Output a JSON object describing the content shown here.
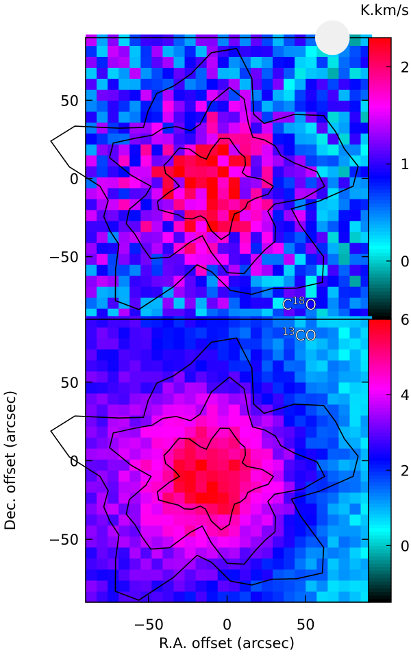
{
  "colorbar_unit": "K.km/s",
  "xlabel": "R.A. offset (arcsec)",
  "ylabel": "Dec. offset (arcsec)",
  "colors": {
    "cmap": [
      "#000000",
      "#00ffff",
      "#0000ff",
      "#ff00ff",
      "#ff0000"
    ],
    "contour": "#000000",
    "beam": "#f0f0f0"
  },
  "chart_data": [
    {
      "type": "heatmap",
      "name_label": {
        "pre": "C",
        "sup": "18",
        "post": "O"
      },
      "xlim": [
        -90,
        90
      ],
      "ylim": [
        -90,
        90
      ],
      "xticks": [],
      "yticks": [
        -50,
        0,
        50
      ],
      "ytick_labels": [
        "−50",
        "0",
        "50"
      ],
      "color_range": [
        -0.6,
        2.3
      ],
      "colorbar_ticks": [
        0,
        1,
        2
      ],
      "colorbar_tick_labels": [
        "0",
        "1",
        "2"
      ],
      "pixel_size": 7,
      "peak": {
        "x": -10,
        "y": -5,
        "value": 2.0
      },
      "contours": [
        0.5,
        1.0,
        1.5
      ]
    },
    {
      "type": "heatmap",
      "name_label": {
        "pre": "",
        "sup": "13",
        "post": "CO"
      },
      "xlim": [
        -90,
        90
      ],
      "ylim": [
        -90,
        90
      ],
      "xticks": [
        -50,
        0,
        50
      ],
      "xtick_labels": [
        "−50",
        "0",
        "50"
      ],
      "yticks": [
        -50,
        0,
        50
      ],
      "ytick_labels": [
        "−50",
        "0",
        "50"
      ],
      "color_range": [
        -1.5,
        6.0
      ],
      "colorbar_ticks": [
        0,
        2,
        4,
        6
      ],
      "colorbar_tick_labels": [
        "0",
        "2",
        "4",
        "6"
      ],
      "pixel_size": 7,
      "peak": {
        "x": -10,
        "y": -10,
        "value": 5.8
      },
      "contours": [
        1.5,
        3.0,
        4.5
      ]
    }
  ],
  "beam": {
    "x": 67,
    "y": 90,
    "diameter": 22
  }
}
